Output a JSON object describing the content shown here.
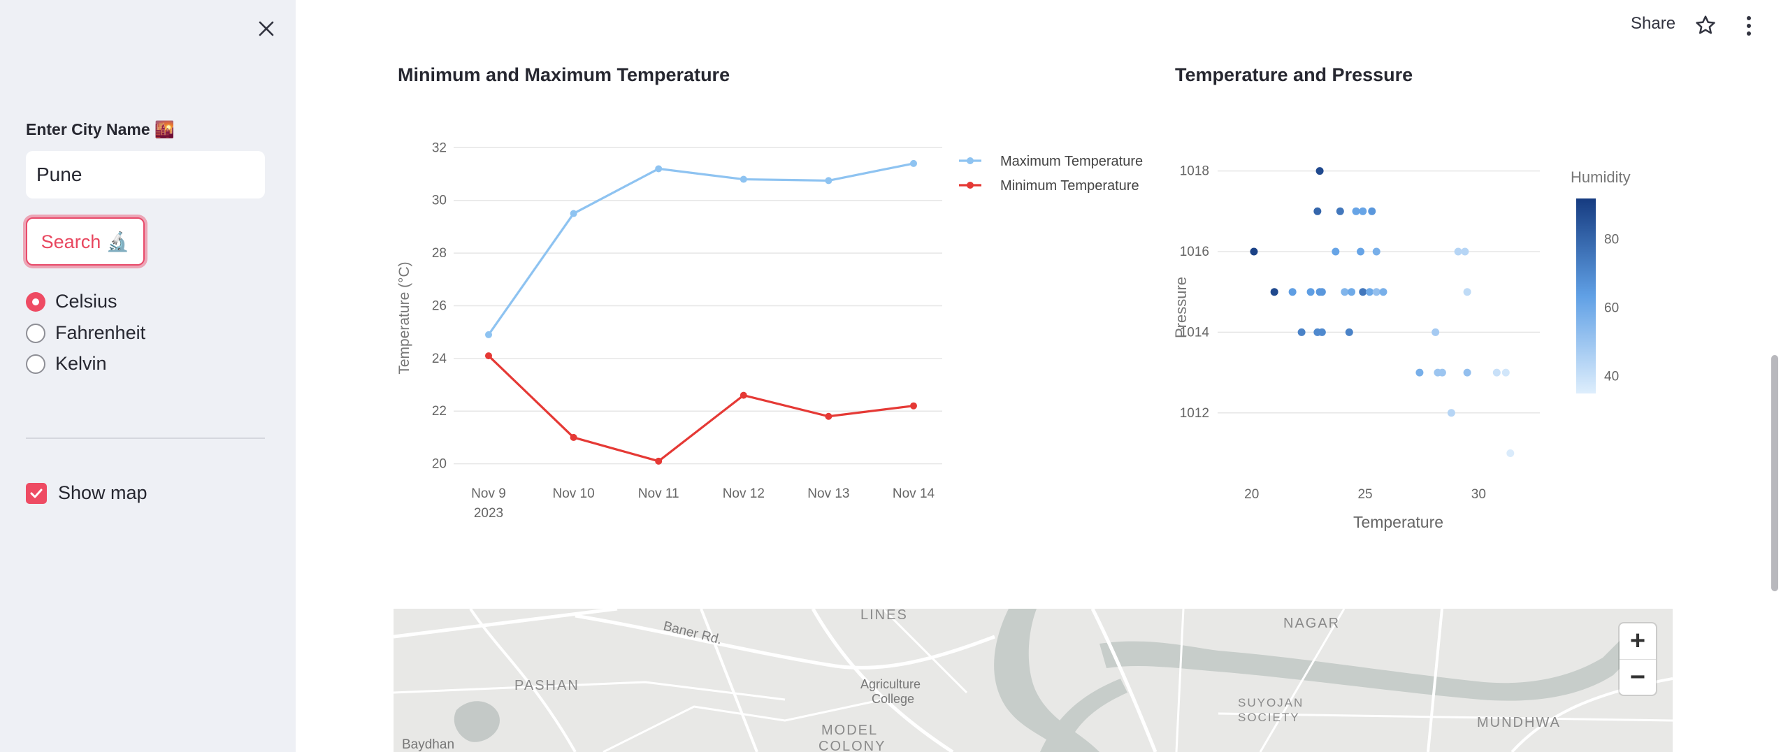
{
  "sidebar": {
    "city_label": "Enter City Name 🌇",
    "city_value": "Pune",
    "search_label": "Search 🔬",
    "units": [
      "Celsius",
      "Fahrenheit",
      "Kelvin"
    ],
    "selected_unit": "Celsius",
    "show_map_label": "Show map",
    "show_map_checked": true
  },
  "header": {
    "share_label": "Share"
  },
  "accent_color": "#ee4b63",
  "chart_data": [
    {
      "type": "line",
      "title": "Minimum and Maximum Temperature",
      "x": [
        "Nov 9",
        "Nov 10",
        "Nov 11",
        "Nov 12",
        "Nov 13",
        "Nov 14"
      ],
      "x_sublabel": "2023",
      "ylabel": "Temperature (°C)",
      "yticks": [
        20,
        22,
        24,
        26,
        28,
        30,
        32
      ],
      "ylim": [
        19.3,
        32.3
      ],
      "grid": true,
      "legend_placement": "top-right",
      "series": [
        {
          "name": "Maximum Temperature",
          "color": "#8ec3f1",
          "values": [
            24.9,
            29.5,
            31.2,
            30.8,
            30.75,
            31.4
          ]
        },
        {
          "name": "Minimum Temperature",
          "color": "#e53935",
          "values": [
            24.1,
            21.0,
            20.1,
            22.6,
            21.8,
            22.2
          ]
        }
      ]
    },
    {
      "type": "scatter",
      "title": "Temperature and Pressure",
      "xlabel": "Temperature",
      "ylabel": "Pressure",
      "xticks": [
        20,
        25,
        30
      ],
      "yticks": [
        1012,
        1014,
        1016,
        1018
      ],
      "xlim": [
        18.5,
        32.7
      ],
      "ylim": [
        1010.8,
        1018.6
      ],
      "grid": true,
      "colorbar_title": "Humidity",
      "colorbar_ticks": [
        40,
        60,
        80
      ],
      "colorbar_range": [
        35,
        92
      ],
      "points": [
        {
          "x": 23.0,
          "y": 1018,
          "c": 88
        },
        {
          "x": 22.9,
          "y": 1017,
          "c": 80
        },
        {
          "x": 23.9,
          "y": 1017,
          "c": 75
        },
        {
          "x": 24.6,
          "y": 1017,
          "c": 62
        },
        {
          "x": 24.9,
          "y": 1017,
          "c": 62
        },
        {
          "x": 25.3,
          "y": 1017,
          "c": 66
        },
        {
          "x": 20.1,
          "y": 1016,
          "c": 90
        },
        {
          "x": 23.7,
          "y": 1016,
          "c": 62
        },
        {
          "x": 24.8,
          "y": 1016,
          "c": 62
        },
        {
          "x": 25.5,
          "y": 1016,
          "c": 58
        },
        {
          "x": 29.1,
          "y": 1016,
          "c": 44
        },
        {
          "x": 29.4,
          "y": 1016,
          "c": 44
        },
        {
          "x": 21.0,
          "y": 1015,
          "c": 88
        },
        {
          "x": 21.8,
          "y": 1015,
          "c": 64
        },
        {
          "x": 22.6,
          "y": 1015,
          "c": 64
        },
        {
          "x": 23.0,
          "y": 1015,
          "c": 66
        },
        {
          "x": 23.1,
          "y": 1015,
          "c": 66
        },
        {
          "x": 24.1,
          "y": 1015,
          "c": 56
        },
        {
          "x": 24.4,
          "y": 1015,
          "c": 60
        },
        {
          "x": 24.9,
          "y": 1015,
          "c": 75
        },
        {
          "x": 25.2,
          "y": 1015,
          "c": 60
        },
        {
          "x": 25.5,
          "y": 1015,
          "c": 52
        },
        {
          "x": 25.8,
          "y": 1015,
          "c": 58
        },
        {
          "x": 29.5,
          "y": 1015,
          "c": 42
        },
        {
          "x": 22.2,
          "y": 1014,
          "c": 72
        },
        {
          "x": 22.9,
          "y": 1014,
          "c": 70
        },
        {
          "x": 23.1,
          "y": 1014,
          "c": 70
        },
        {
          "x": 24.3,
          "y": 1014,
          "c": 72
        },
        {
          "x": 28.1,
          "y": 1014,
          "c": 48
        },
        {
          "x": 27.4,
          "y": 1013,
          "c": 58
        },
        {
          "x": 28.2,
          "y": 1013,
          "c": 50
        },
        {
          "x": 28.4,
          "y": 1013,
          "c": 50
        },
        {
          "x": 29.5,
          "y": 1013,
          "c": 52
        },
        {
          "x": 30.8,
          "y": 1013,
          "c": 40
        },
        {
          "x": 31.2,
          "y": 1013,
          "c": 38
        },
        {
          "x": 28.8,
          "y": 1012,
          "c": 44
        },
        {
          "x": 31.4,
          "y": 1011,
          "c": 36
        }
      ]
    }
  ],
  "map": {
    "labels": [
      "Baner Rd.",
      "LINES",
      "PASHAN",
      "Agriculture",
      "College",
      "MODEL",
      "COLONY",
      "Baydhan",
      "NAGAR",
      "SUYOJAN",
      "SOCIETY",
      "MUNDHWA"
    ],
    "zoom_in": "+",
    "zoom_out": "−"
  }
}
